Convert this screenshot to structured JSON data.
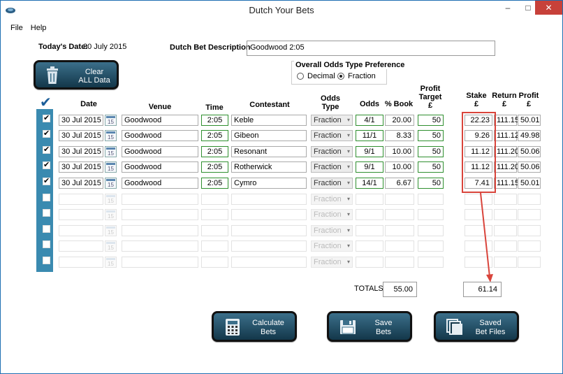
{
  "window": {
    "title": "Dutch Your Bets",
    "minimize": "–",
    "maximize": "□",
    "close": "✕"
  },
  "menu": {
    "items": [
      "File",
      "Help"
    ]
  },
  "header": {
    "today_label": "Today's Date:",
    "today_value": "30 July 2015",
    "desc_label": "Dutch Bet Description",
    "desc_value": "Goodwood 2:05"
  },
  "clear_button": {
    "label_1": "Clear",
    "label_2": "ALL Data",
    "icon": "trash-icon"
  },
  "odds_pref": {
    "title": "Overall Odds Type Preference",
    "options": [
      "Decimal",
      "Fraction"
    ],
    "selected": "Fraction"
  },
  "columns": {
    "date": "Date",
    "venue": "Venue",
    "time": "Time",
    "contestant": "Contestant",
    "odds_type_1": "Odds",
    "odds_type_2": "Type",
    "odds": "Odds",
    "book": "% Book",
    "profit_target_1": "Profit",
    "profit_target_2": "Target",
    "profit_target_3": "£",
    "stake_1": "Stake",
    "stake_2": "£",
    "return_1": "Return",
    "return_2": "£",
    "profit_1": "Profit",
    "profit_2": "£"
  },
  "rows": [
    {
      "checked": "✔",
      "date": "30 Jul 2015",
      "venue": "Goodwood",
      "time": "2:05",
      "contestant": "Keble",
      "odds_type": "Fraction",
      "odds": "4/1",
      "book": "20.00",
      "target": "50",
      "stake": "22.23",
      "return": "111.15",
      "profit": "50.01"
    },
    {
      "checked": "✔",
      "date": "30 Jul 2015",
      "venue": "Goodwood",
      "time": "2:05",
      "contestant": "Gibeon",
      "odds_type": "Fraction",
      "odds": "11/1",
      "book": "8.33",
      "target": "50",
      "stake": "9.26",
      "return": "111.12",
      "profit": "49.98"
    },
    {
      "checked": "✔",
      "date": "30 Jul 2015",
      "venue": "Goodwood",
      "time": "2:05",
      "contestant": "Resonant",
      "odds_type": "Fraction",
      "odds": "9/1",
      "book": "10.00",
      "target": "50",
      "stake": "11.12",
      "return": "111.20",
      "profit": "50.06"
    },
    {
      "checked": "✔",
      "date": "30 Jul 2015",
      "venue": "Goodwood",
      "time": "2:05",
      "contestant": "Rotherwick",
      "odds_type": "Fraction",
      "odds": "9/1",
      "book": "10.00",
      "target": "50",
      "stake": "11.12",
      "return": "111.20",
      "profit": "50.06"
    },
    {
      "checked": "✔",
      "date": "30 Jul 2015",
      "venue": "Goodwood",
      "time": "2:05",
      "contestant": "Cymro",
      "odds_type": "Fraction",
      "odds": "14/1",
      "book": "6.67",
      "target": "50",
      "stake": "7.41",
      "return": "111.15",
      "profit": "50.01"
    }
  ],
  "empty_row": {
    "odds_type": "Fraction",
    "cal": "15"
  },
  "calendar_day": "15",
  "dropdown_arrow": "▾",
  "totals": {
    "label": "TOTALS",
    "book": "55.00",
    "stake": "61.14"
  },
  "buttons": {
    "calculate": {
      "label_1": "Calculate",
      "label_2": "Bets",
      "icon": "calculator-icon"
    },
    "save": {
      "label_1": "Save",
      "label_2": "Bets",
      "icon": "floppy-disk-icon"
    },
    "saved": {
      "label_1": "Saved",
      "label_2": "Bet Files",
      "icon": "files-icon"
    }
  },
  "colors": {
    "accent": "#3a8ab0",
    "highlight": "#d9443b",
    "odds_border": "#2f8f2f",
    "close": "#c7413a"
  }
}
